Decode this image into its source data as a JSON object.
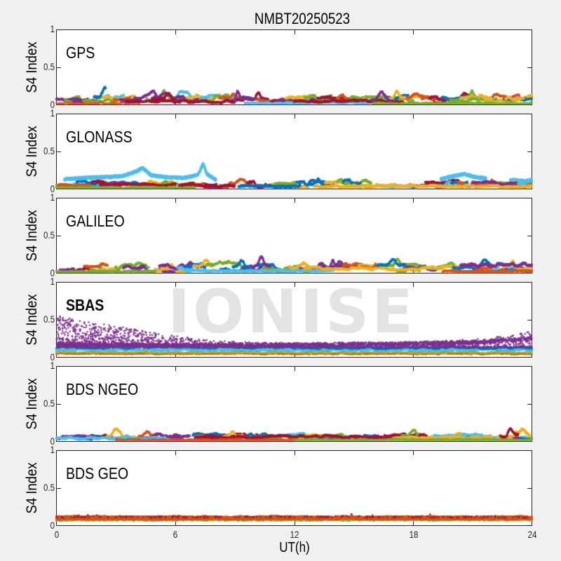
{
  "title": "NMBT20250523",
  "xlabel": "UT(h)",
  "ylabel": "S4 Index",
  "watermark": "IONISE",
  "colors": {
    "background": "#f0f0f0",
    "panel_background": "#ffffff",
    "axis": "#262626",
    "text": "#000000",
    "watermark": "#e3e3e3",
    "palette": [
      "#0072BD",
      "#D95319",
      "#EDB120",
      "#7E2F8E",
      "#77AC30",
      "#4DBEEE",
      "#A2142F"
    ]
  },
  "axes": {
    "xlim": [
      0,
      24
    ],
    "ylim": [
      0,
      1
    ],
    "x_ticks": [
      0,
      6,
      12,
      18,
      24
    ],
    "x_tick_labels": [
      "0",
      "6",
      "12",
      "18",
      "24"
    ],
    "y_ticks": [
      0,
      0.5,
      1
    ],
    "y_tick_labels": [
      "0",
      "0.5",
      "1"
    ],
    "grid": false,
    "box": true,
    "tick_dir": "in"
  },
  "chart_data": [
    {
      "type": "scatter",
      "label": "GPS",
      "label_bold": false,
      "xlim": [
        0,
        24
      ],
      "ylim": [
        0,
        1
      ],
      "summary": "Dense multi-satellite S4 scintillation traces from ~0.02 to ~0.15 across all 24 h, occasional short spikes to ~0.25",
      "seed": 11,
      "auto": {
        "n": 52,
        "dur": [
          0.7,
          2.2
        ],
        "base": [
          0.035,
          0.1
        ],
        "amp": [
          0.015,
          0.05
        ],
        "spike_prob": 0.3,
        "spike_h": [
          0.03,
          0.1
        ],
        "ms": 3
      },
      "tracks": [
        {
          "kind": "streak",
          "c": 0,
          "t0": 1.9,
          "t1": 2.5,
          "b": 0.1,
          "a": 0.01,
          "ms": 3.2,
          "spikes": [
            [
              2.45,
              0.18,
              0.13
            ]
          ]
        },
        {
          "kind": "streak",
          "c": 1,
          "t0": 0.0,
          "t1": 4.2,
          "b": 0.018,
          "a": 0.006,
          "ms": 2.2,
          "dt": 0.03
        },
        {
          "kind": "streak",
          "c": 5,
          "t0": 9.5,
          "t1": 16.5,
          "b": 0.025,
          "a": 0.008,
          "ms": 2.8
        },
        {
          "kind": "streak",
          "c": 6,
          "t0": 3.5,
          "t1": 9.0,
          "b": 0.045,
          "a": 0.014,
          "ms": 3
        },
        {
          "kind": "streak",
          "c": 6,
          "t0": 12.0,
          "t1": 17.5,
          "b": 0.05,
          "a": 0.015,
          "ms": 3
        },
        {
          "kind": "streak",
          "c": 2,
          "t0": 16.8,
          "t1": 17.6,
          "b": 0.09,
          "a": 0.02,
          "ms": 3,
          "spikes": [
            [
              17.2,
              0.15,
              0.1
            ]
          ]
        },
        {
          "kind": "streak",
          "c": 3,
          "t0": 15.9,
          "t1": 17.0,
          "b": 0.07,
          "a": 0.02,
          "ms": 3,
          "spikes": [
            [
              16.4,
              0.2,
              0.09
            ]
          ]
        },
        {
          "kind": "band",
          "c": 4,
          "t0": 16.0,
          "t1": 24.0,
          "b": 0.02,
          "a": 0.008,
          "ms": 2.8,
          "dt": 0.02
        }
      ]
    },
    {
      "type": "scatter",
      "label": "GLONASS",
      "label_bold": false,
      "xlim": [
        0,
        24
      ],
      "ylim": [
        0,
        1
      ],
      "summary": "Low traces 0.02-0.12 with an elevated cyan satellite arc 0-8 h peaking near 0.3 at 4.3 h and 0.33 at 7.4 h, cyan arcs again 19.5-21.5 h near 0.2",
      "seed": 22,
      "auto": {
        "n": 34,
        "dur": [
          0.7,
          2.2
        ],
        "base": [
          0.03,
          0.09
        ],
        "amp": [
          0.012,
          0.045
        ],
        "spike_prob": 0.28,
        "spike_h": [
          0.03,
          0.09
        ],
        "ms": 3
      },
      "tracks": [
        {
          "kind": "arc",
          "c": 5,
          "noise": 0.016,
          "ms": 3.2,
          "pts": [
            [
              0.4,
              0.13
            ],
            [
              1.5,
              0.15
            ],
            [
              2.5,
              0.16
            ],
            [
              3.3,
              0.17
            ],
            [
              4.0,
              0.23
            ],
            [
              4.35,
              0.28
            ],
            [
              4.8,
              0.18
            ],
            [
              5.6,
              0.155
            ],
            [
              6.5,
              0.15
            ],
            [
              7.15,
              0.19
            ],
            [
              7.4,
              0.33
            ],
            [
              7.6,
              0.2
            ],
            [
              8.05,
              0.12
            ]
          ],
          "dt": 0.01
        },
        {
          "kind": "arc",
          "c": 5,
          "noise": 0.016,
          "ms": 3.2,
          "pts": [
            [
              19.4,
              0.13
            ],
            [
              20.0,
              0.17
            ],
            [
              20.6,
              0.2
            ],
            [
              21.1,
              0.16
            ],
            [
              21.7,
              0.14
            ]
          ],
          "dt": 0.01
        },
        {
          "kind": "streak",
          "c": 5,
          "t0": 22.9,
          "t1": 24.0,
          "b": 0.115,
          "a": 0.015,
          "ms": 3
        },
        {
          "kind": "streak",
          "c": 6,
          "t0": 2.2,
          "t1": 6.0,
          "b": 0.05,
          "a": 0.018,
          "ms": 3.2
        },
        {
          "kind": "streak",
          "c": 6,
          "t0": 6.2,
          "t1": 9.0,
          "b": 0.04,
          "a": 0.012,
          "ms": 3
        },
        {
          "kind": "streak",
          "c": 0,
          "t0": 9.2,
          "t1": 12.3,
          "b": 0.035,
          "a": 0.01,
          "ms": 3.4
        },
        {
          "kind": "streak",
          "c": 3,
          "t0": 21.0,
          "t1": 23.2,
          "b": 0.08,
          "a": 0.02,
          "ms": 3
        },
        {
          "kind": "streak",
          "c": 1,
          "t0": 0.1,
          "t1": 1.8,
          "b": 0.05,
          "a": 0.015,
          "ms": 3
        },
        {
          "kind": "band",
          "c": 4,
          "t0": 0.0,
          "t1": 7.0,
          "b": 0.018,
          "a": 0.008,
          "ms": 2.8,
          "dt": 0.02
        },
        {
          "kind": "band",
          "c": 2,
          "t0": 13.0,
          "t1": 24.0,
          "b": 0.035,
          "a": 0.012,
          "ms": 3,
          "dt": 0.015
        }
      ]
    },
    {
      "type": "scatter",
      "label": "GALILEO",
      "label_bold": false,
      "xlim": [
        0,
        24
      ],
      "ylim": [
        0,
        1
      ],
      "summary": "Traces 0.02-0.18 with short rising spikes to ~0.25 near 7-10 h and 16-17 h, long yellow arcs 12-20 h, purple traces near the right edge",
      "seed": 33,
      "auto": {
        "n": 38,
        "dur": [
          0.7,
          2.4
        ],
        "base": [
          0.035,
          0.1
        ],
        "amp": [
          0.015,
          0.045
        ],
        "spike_prob": 0.3,
        "spike_h": [
          0.03,
          0.1
        ],
        "ms": 3
      },
      "tracks": [
        {
          "kind": "streak",
          "c": 5,
          "t0": 6.5,
          "t1": 14.0,
          "b": 0.03,
          "a": 0.008,
          "ms": 3
        },
        {
          "kind": "streak",
          "c": 3,
          "t0": 9.8,
          "t1": 10.8,
          "b": 0.1,
          "a": 0.02,
          "ms": 3,
          "spikes": [
            [
              10.35,
              0.14,
              0.12
            ]
          ]
        },
        {
          "kind": "streak",
          "c": 0,
          "t0": 8.9,
          "t1": 9.8,
          "b": 0.08,
          "a": 0.02,
          "ms": 3,
          "spikes": [
            [
              9.35,
              0.16,
              0.1
            ]
          ]
        },
        {
          "kind": "streak",
          "c": 3,
          "t0": 20.4,
          "t1": 24.0,
          "b": 0.11,
          "a": 0.025,
          "ms": 3.4
        },
        {
          "kind": "streak",
          "c": 2,
          "t0": 12.5,
          "t1": 19.5,
          "b": 0.06,
          "a": 0.02,
          "ms": 3
        },
        {
          "kind": "streak",
          "c": 1,
          "t0": 1.4,
          "t1": 2.6,
          "b": 0.1,
          "a": 0.025,
          "ms": 3
        },
        {
          "kind": "streak",
          "c": 0,
          "t0": 16.2,
          "t1": 17.6,
          "b": 0.1,
          "a": 0.02,
          "ms": 3,
          "spikes": [
            [
              17.0,
              0.2,
              0.08
            ]
          ]
        },
        {
          "kind": "band",
          "c": 4,
          "t0": 0.0,
          "t1": 5.0,
          "b": 0.02,
          "a": 0.008,
          "ms": 2.8,
          "dt": 0.02
        },
        {
          "kind": "band",
          "c": 1,
          "t0": 19.5,
          "t1": 24.0,
          "b": 0.025,
          "a": 0.01,
          "ms": 2.8,
          "dt": 0.02
        }
      ]
    },
    {
      "type": "scatter",
      "label": "SBAS",
      "label_bold": true,
      "xlim": [
        0,
        24
      ],
      "ylim": [
        0,
        1
      ],
      "summary": "Purple geostationary SBAS scatter cloud from 0.13 up to ~0.55 at 0 h decaying to ~0.2 by 8 h, dense purple band ~0.15-0.2 all day rising to ~0.3 near 24 h; steady cyan band ~0.1, blue ~0.12, green ~0.055, orange ~0.045 bands across 24 h",
      "seed": 44,
      "tracks": [
        {
          "kind": "band",
          "c": 5,
          "t0": 0,
          "t1": 24,
          "b": 0.103,
          "a": 0.013,
          "ms": 3.4,
          "dt": 0.004
        },
        {
          "kind": "band",
          "c": 0,
          "t0": 0,
          "t1": 9,
          "b": 0.127,
          "a": 0.013,
          "ms": 2.4,
          "dt": 0.05
        },
        {
          "kind": "band",
          "c": 0,
          "t0": 9,
          "t1": 24,
          "b": 0.13,
          "a": 0.015,
          "ms": 2.6,
          "dt": 0.02
        },
        {
          "kind": "band",
          "c": 4,
          "t0": 0,
          "t1": 24,
          "b": 0.057,
          "a": 0.009,
          "ms": 2.8,
          "dt": 0.012
        },
        {
          "kind": "band",
          "c": 1,
          "t0": 0,
          "t1": 24,
          "b": 0.044,
          "a": 0.007,
          "ms": 1.8,
          "dt": 0.08
        },
        {
          "kind": "band",
          "c": 2,
          "t0": 0,
          "t1": 24,
          "b": 0.066,
          "a": 0.008,
          "ms": 1.8,
          "dt": 0.09
        },
        {
          "kind": "noiseband",
          "c": 3,
          "sigma": 0.02,
          "n": 2300,
          "ms": 2.2,
          "pts": [
            [
              0,
              0.17
            ],
            [
              4,
              0.165
            ],
            [
              8,
              0.16
            ],
            [
              12,
              0.165
            ],
            [
              16,
              0.175
            ],
            [
              19,
              0.185
            ],
            [
              21,
              0.2
            ],
            [
              23,
              0.23
            ],
            [
              24,
              0.26
            ]
          ]
        },
        {
          "kind": "cloud",
          "c": 3,
          "n": 2200,
          "ymin": 0.135,
          "bias": 2.4,
          "ms": 2.2,
          "ymax_pts": [
            [
              0,
              0.56
            ],
            [
              1,
              0.5
            ],
            [
              2,
              0.46
            ],
            [
              3,
              0.42
            ],
            [
              4,
              0.37
            ],
            [
              5,
              0.33
            ],
            [
              6,
              0.29
            ],
            [
              7,
              0.25
            ],
            [
              8,
              0.22
            ],
            [
              10,
              0.2
            ],
            [
              14,
              0.19
            ],
            [
              18,
              0.21
            ],
            [
              21,
              0.24
            ],
            [
              23,
              0.29
            ],
            [
              24,
              0.38
            ]
          ],
          "density_pts": [
            [
              0,
              3.2
            ],
            [
              3,
              2.8
            ],
            [
              5,
              2.2
            ],
            [
              7,
              1.5
            ],
            [
              9,
              1.0
            ],
            [
              14,
              0.9
            ],
            [
              19,
              1.0
            ],
            [
              24,
              1.2
            ]
          ]
        }
      ]
    },
    {
      "type": "scatter",
      "label": "BDS NGEO",
      "label_bold": false,
      "xlim": [
        0,
        24
      ],
      "ylim": [
        0,
        1
      ],
      "summary": "Flat dense traces 0.02-0.12 all day, dark-red trace through midday, yellow blob to ~0.2 near 23.5 h",
      "seed": 55,
      "auto": {
        "n": 46,
        "dur": [
          0.7,
          2.2
        ],
        "base": [
          0.03,
          0.085
        ],
        "amp": [
          0.01,
          0.035
        ],
        "spike_prob": 0.22,
        "spike_h": [
          0.02,
          0.07
        ],
        "ms": 3
      },
      "tracks": [
        {
          "kind": "streak",
          "c": 6,
          "t0": 7.0,
          "t1": 17.0,
          "b": 0.06,
          "a": 0.018,
          "ms": 3.2
        },
        {
          "kind": "streak",
          "c": 5,
          "t0": 0.0,
          "t1": 5.5,
          "b": 0.045,
          "a": 0.014,
          "ms": 3
        },
        {
          "kind": "streak",
          "c": 2,
          "t0": 23.1,
          "t1": 23.9,
          "b": 0.1,
          "a": 0.03,
          "ms": 3.4,
          "spikes": [
            [
              23.55,
              0.2,
              0.08
            ]
          ]
        },
        {
          "kind": "streak",
          "c": 6,
          "t0": 22.4,
          "t1": 23.3,
          "b": 0.08,
          "a": 0.02,
          "ms": 3,
          "spikes": [
            [
              22.9,
              0.15,
              0.08
            ]
          ]
        },
        {
          "kind": "streak",
          "c": 2,
          "t0": 17.0,
          "t1": 22.0,
          "b": 0.05,
          "a": 0.015,
          "ms": 3
        },
        {
          "kind": "band",
          "c": 1,
          "t0": 3.0,
          "t1": 12.0,
          "b": 0.02,
          "a": 0.008,
          "ms": 2.8,
          "dt": 0.02
        },
        {
          "kind": "band",
          "c": 4,
          "t0": 12.0,
          "t1": 24.0,
          "b": 0.02,
          "a": 0.008,
          "ms": 2.8,
          "dt": 0.02
        }
      ]
    },
    {
      "type": "scatter",
      "label": "BDS GEO",
      "label_bold": false,
      "xlim": [
        0,
        24
      ],
      "ylim": [
        0,
        1
      ],
      "summary": "Continuous flat geostationary bands: orange at ~0.105, yellow at ~0.088, sparse green ~0.075 and rare dark specks to ~0.15, constant across 24 h",
      "seed": 66,
      "tracks": [
        {
          "kind": "band",
          "c": 2,
          "t0": 0,
          "t1": 24,
          "b": 0.087,
          "a": 0.006,
          "ms": 3.2,
          "dt": 0.005
        },
        {
          "kind": "band",
          "c": 4,
          "t0": 0,
          "t1": 24,
          "b": 0.073,
          "a": 0.005,
          "ms": 2.4,
          "dt": 0.05
        },
        {
          "kind": "band",
          "c": 1,
          "t0": 0,
          "t1": 24,
          "b": 0.1,
          "a": 0.005,
          "ms": 3.6,
          "dt": 0.004
        },
        {
          "kind": "band",
          "c": 1,
          "t0": 0,
          "t1": 24,
          "b": 0.11,
          "a": 0.006,
          "ms": 3.2,
          "dt": 0.006
        },
        {
          "kind": "cloud",
          "c": 6,
          "n": 110,
          "ymin": 0.105,
          "bias": 1.5,
          "ms": 2.2,
          "ymax_pts": [
            [
              0,
              0.13
            ],
            [
              24,
              0.13
            ]
          ],
          "density_pts": [
            [
              0,
              1
            ],
            [
              24,
              1
            ]
          ]
        },
        {
          "kind": "cloud",
          "c": 6,
          "n": 18,
          "ymin": 0.115,
          "bias": 1.2,
          "ms": 2.2,
          "ymax_pts": [
            [
              0,
              0.155
            ],
            [
              24,
              0.155
            ]
          ],
          "density_pts": [
            [
              0,
              1
            ],
            [
              24,
              1
            ]
          ]
        },
        {
          "kind": "cloud",
          "c": 6,
          "n": 120,
          "ymin": 0.108,
          "bias": 1.3,
          "ms": 2.0,
          "ymax_pts": [
            [
              0,
              0.12
            ],
            [
              24,
              0.12
            ]
          ],
          "density_pts": [
            [
              0,
              1
            ],
            [
              24,
              1
            ]
          ]
        }
      ]
    }
  ]
}
